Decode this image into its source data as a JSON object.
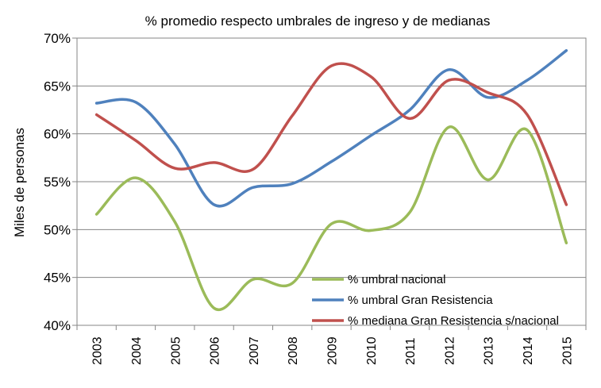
{
  "chart_data": {
    "type": "line",
    "title": "% promedio respecto umbrales de ingreso y de medianas",
    "xlabel": "",
    "ylabel": "Miles de personas",
    "x": [
      "2003",
      "2004",
      "2005",
      "2006",
      "2007",
      "2008",
      "2009",
      "2010",
      "2011",
      "2012",
      "2013",
      "2014",
      "2015"
    ],
    "ylim": [
      40,
      70
    ],
    "yticks": [
      40,
      45,
      50,
      55,
      60,
      65,
      70
    ],
    "ytick_labels": [
      "40%",
      "45%",
      "50%",
      "55%",
      "60%",
      "65%",
      "70%"
    ],
    "grid": true,
    "legend_position": "bottom-right",
    "series": [
      {
        "name": "% umbral nacional",
        "color": "#9bbb59",
        "values": [
          51.6,
          55.4,
          50.8,
          41.8,
          44.8,
          44.4,
          50.6,
          49.9,
          51.8,
          60.7,
          55.2,
          60.4,
          48.6
        ]
      },
      {
        "name": "% umbral Gran Resistencia",
        "color": "#4f81bd",
        "values": [
          63.2,
          63.3,
          58.9,
          52.6,
          54.4,
          54.8,
          57.1,
          59.8,
          62.5,
          66.7,
          63.8,
          65.6,
          68.7
        ]
      },
      {
        "name": "% mediana Gran Resistencia  s/nacional",
        "color": "#c0504d",
        "values": [
          62.0,
          59.3,
          56.4,
          57.0,
          56.3,
          61.9,
          67.1,
          66.0,
          61.6,
          65.6,
          64.3,
          62.0,
          52.6
        ]
      }
    ]
  }
}
